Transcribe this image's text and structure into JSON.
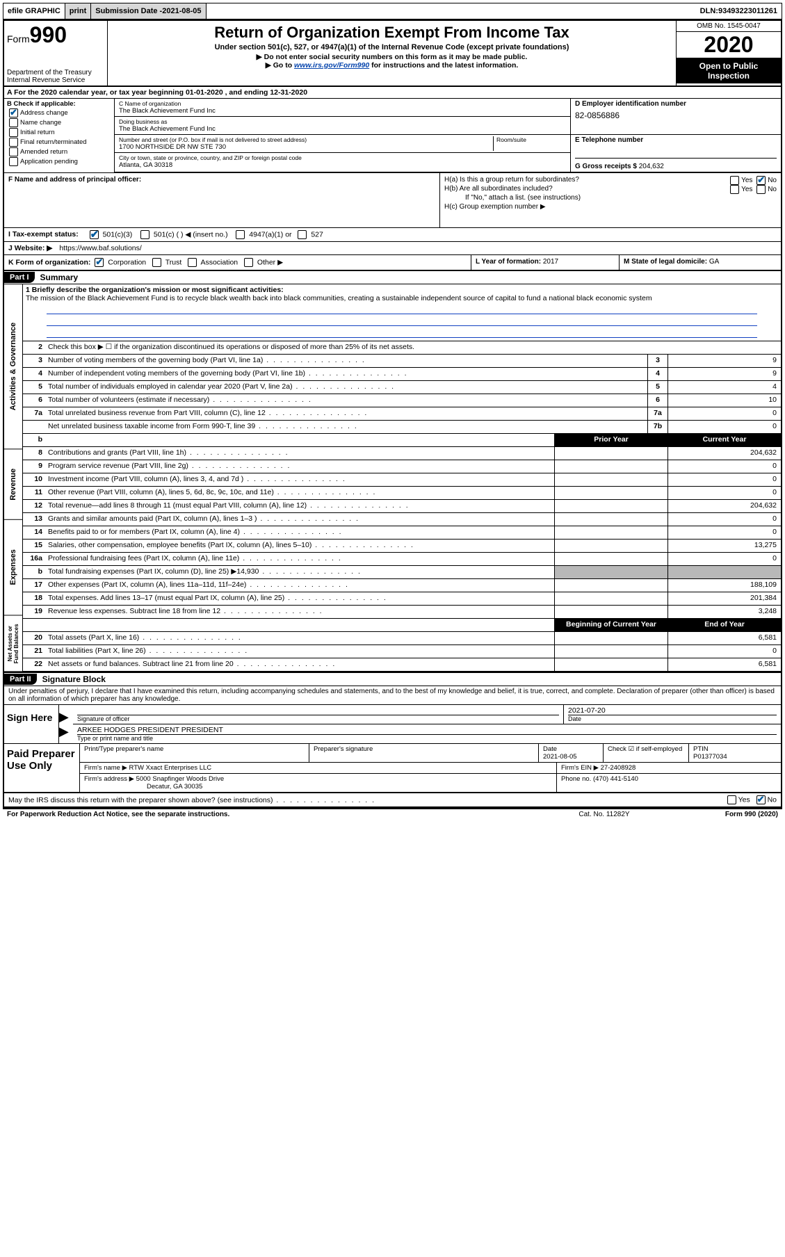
{
  "topbar": {
    "efile": "efile GRAPHIC",
    "print": "print",
    "subdate_label": "Submission Date - ",
    "subdate": "2021-08-05",
    "dln_label": "DLN: ",
    "dln": "93493223011261"
  },
  "header": {
    "form_word": "Form",
    "form_num": "990",
    "dept1": "Department of the Treasury",
    "dept2": "Internal Revenue Service",
    "title": "Return of Organization Exempt From Income Tax",
    "sub1": "Under section 501(c), 527, or 4947(a)(1) of the Internal Revenue Code (except private foundations)",
    "sub2": "▶ Do not enter social security numbers on this form as it may be made public.",
    "sub3_pre": "▶ Go to ",
    "sub3_link": "www.irs.gov/Form990",
    "sub3_post": " for instructions and the latest information.",
    "omb": "OMB No. 1545-0047",
    "year": "2020",
    "open": "Open to Public Inspection"
  },
  "rowA": "A For the 2020 calendar year, or tax year beginning 01-01-2020    , and ending 12-31-2020",
  "B": {
    "label": "B Check if applicable:",
    "opts": [
      "Address change",
      "Name change",
      "Initial return",
      "Final return/terminated",
      "Amended return",
      "Application pending"
    ],
    "checked_idx": 0
  },
  "C": {
    "name_lab": "C Name of organization",
    "name": "The Black Achievement Fund Inc",
    "dba_lab": "Doing business as",
    "dba": "The Black Achievement Fund Inc",
    "addr_lab": "Number and street (or P.O. box if mail is not delivered to street address)",
    "room_lab": "Room/suite",
    "addr": "1700 NORTHSIDE DR NW STE 730",
    "city_lab": "City or town, state or province, country, and ZIP or foreign postal code",
    "city": "Atlanta, GA  30318"
  },
  "D": {
    "lab": "D Employer identification number",
    "ein": "82-0856886"
  },
  "E": {
    "lab": "E Telephone number",
    "val": ""
  },
  "G": {
    "lab": "G Gross receipts $ ",
    "val": "204,632"
  },
  "F": {
    "lab": "F  Name and address of principal officer:"
  },
  "H": {
    "a": "H(a)  Is this a group return for subordinates?",
    "b": "H(b)  Are all subordinates included?",
    "b_note": "If \"No,\" attach a list. (see instructions)",
    "c": "H(c)  Group exemption number ▶",
    "yes": "Yes",
    "no": "No"
  },
  "I": {
    "lab": "I   Tax-exempt status:",
    "o1": "501(c)(3)",
    "o2": "501(c) (  ) ◀ (insert no.)",
    "o3": "4947(a)(1) or",
    "o4": "527"
  },
  "J": {
    "lab": "J   Website: ▶",
    "val": " https://www.baf.solutions/"
  },
  "K": {
    "lab": "K Form of organization:",
    "o1": "Corporation",
    "o2": "Trust",
    "o3": "Association",
    "o4": "Other ▶"
  },
  "L": {
    "lab": "L Year of formation: ",
    "val": "2017"
  },
  "M": {
    "lab": "M State of legal domicile: ",
    "val": "GA"
  },
  "part1": {
    "hdr": "Part I",
    "title": "Summary"
  },
  "mission": {
    "lab": "1  Briefly describe the organization's mission or most significant activities:",
    "text": "The mission of the Black Achievement Fund is to recycle black wealth back into black communities, creating a sustainable independent source of capital to fund a national black economic system"
  },
  "line2": "Check this box ▶ ☐  if the organization discontinued its operations or disposed of more than 25% of its net assets.",
  "vtabs": [
    "Activities & Governance",
    "Revenue",
    "Expenses",
    "Net Assets or Fund Balances"
  ],
  "gov_lines": [
    {
      "n": "3",
      "d": "Number of voting members of the governing body (Part VI, line 1a)",
      "c": "3",
      "v": "9"
    },
    {
      "n": "4",
      "d": "Number of independent voting members of the governing body (Part VI, line 1b)",
      "c": "4",
      "v": "9"
    },
    {
      "n": "5",
      "d": "Total number of individuals employed in calendar year 2020 (Part V, line 2a)",
      "c": "5",
      "v": "4"
    },
    {
      "n": "6",
      "d": "Total number of volunteers (estimate if necessary)",
      "c": "6",
      "v": "10"
    },
    {
      "n": "7a",
      "d": "Total unrelated business revenue from Part VIII, column (C), line 12",
      "c": "7a",
      "v": "0"
    },
    {
      "n": "",
      "d": "Net unrelated business taxable income from Form 990-T, line 39",
      "c": "7b",
      "v": "0"
    }
  ],
  "colhdr": {
    "b": "b",
    "prior": "Prior Year",
    "curr": "Current Year"
  },
  "rev_lines": [
    {
      "n": "8",
      "d": "Contributions and grants (Part VIII, line 1h)",
      "p": "",
      "v": "204,632"
    },
    {
      "n": "9",
      "d": "Program service revenue (Part VIII, line 2g)",
      "p": "",
      "v": "0"
    },
    {
      "n": "10",
      "d": "Investment income (Part VIII, column (A), lines 3, 4, and 7d )",
      "p": "",
      "v": "0"
    },
    {
      "n": "11",
      "d": "Other revenue (Part VIII, column (A), lines 5, 6d, 8c, 9c, 10c, and 11e)",
      "p": "",
      "v": "0"
    },
    {
      "n": "12",
      "d": "Total revenue—add lines 8 through 11 (must equal Part VIII, column (A), line 12)",
      "p": "",
      "v": "204,632"
    }
  ],
  "exp_lines": [
    {
      "n": "13",
      "d": "Grants and similar amounts paid (Part IX, column (A), lines 1–3 )",
      "p": "",
      "v": "0"
    },
    {
      "n": "14",
      "d": "Benefits paid to or for members (Part IX, column (A), line 4)",
      "p": "",
      "v": "0"
    },
    {
      "n": "15",
      "d": "Salaries, other compensation, employee benefits (Part IX, column (A), lines 5–10)",
      "p": "",
      "v": "13,275"
    },
    {
      "n": "16a",
      "d": "Professional fundraising fees (Part IX, column (A), line 11e)",
      "p": "",
      "v": "0"
    },
    {
      "n": "b",
      "d": "Total fundraising expenses (Part IX, column (D), line 25) ▶14,930",
      "p": "shaded",
      "v": "shaded"
    },
    {
      "n": "17",
      "d": "Other expenses (Part IX, column (A), lines 11a–11d, 11f–24e)",
      "p": "",
      "v": "188,109"
    },
    {
      "n": "18",
      "d": "Total expenses. Add lines 13–17 (must equal Part IX, column (A), line 25)",
      "p": "",
      "v": "201,384"
    },
    {
      "n": "19",
      "d": "Revenue less expenses. Subtract line 18 from line 12",
      "p": "",
      "v": "3,248"
    }
  ],
  "net_hdr": {
    "boy": "Beginning of Current Year",
    "eoy": "End of Year"
  },
  "net_lines": [
    {
      "n": "20",
      "d": "Total assets (Part X, line 16)",
      "p": "",
      "v": "6,581"
    },
    {
      "n": "21",
      "d": "Total liabilities (Part X, line 26)",
      "p": "",
      "v": "0"
    },
    {
      "n": "22",
      "d": "Net assets or fund balances. Subtract line 21 from line 20",
      "p": "",
      "v": "6,581"
    }
  ],
  "part2": {
    "hdr": "Part II",
    "title": "Signature Block"
  },
  "sig_decl": "Under penalties of perjury, I declare that I have examined this return, including accompanying schedules and statements, and to the best of my knowledge and belief, it is true, correct, and complete. Declaration of preparer (other than officer) is based on all information of which preparer has any knowledge.",
  "sign": {
    "here": "Sign Here",
    "sig_lab": "Signature of officer",
    "date_lab": "Date",
    "date": "2021-07-20",
    "name": "ARKEE HODGES PRESIDENT PRESIDENT",
    "name_lab": "Type or print name and title"
  },
  "prep": {
    "title": "Paid Preparer Use Only",
    "name_lab": "Print/Type preparer's name",
    "sig_lab": "Preparer's signature",
    "date_lab": "Date",
    "date": "2021-08-05",
    "check_lab": "Check ☑ if self-employed",
    "ptin_lab": "PTIN",
    "ptin": "P01377034",
    "firm_lab": "Firm's name    ▶ ",
    "firm": "RTW Xxact Enterprises LLC",
    "ein_lab": "Firm's EIN ▶ ",
    "ein": "27-2408928",
    "addr_lab": "Firm's address ▶ ",
    "addr1": "5000 Snapfinger Woods Drive",
    "addr2": "Decatur, GA  30035",
    "phone_lab": "Phone no. ",
    "phone": "(470) 441-5140"
  },
  "irs_discuss": "May the IRS discuss this return with the preparer shown above? (see instructions)",
  "footer": {
    "left": "For Paperwork Reduction Act Notice, see the separate instructions.",
    "mid": "Cat. No. 11282Y",
    "right": "Form 990 (2020)"
  }
}
